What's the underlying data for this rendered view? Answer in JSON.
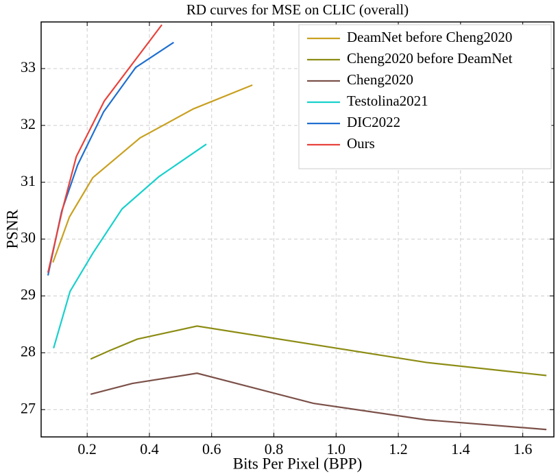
{
  "chart_data": {
    "type": "line",
    "title": "RD curves for MSE on CLIC (overall)",
    "x_label": "Bits Per Pixel (BPP)",
    "y_label": "PSNR",
    "xlim": [
      0.052,
      1.7
    ],
    "ylim": [
      26.52,
      33.82
    ],
    "xticks": [
      0.2,
      0.4,
      0.6,
      0.8,
      {
        "value": 1.0,
        "label": "1.0"
      },
      1.2,
      1.4,
      1.6
    ],
    "yticks": [
      27,
      28,
      29,
      30,
      31,
      32,
      33
    ],
    "grid": true,
    "legend": "upper right",
    "series": [
      {
        "name": "DeamNet before Cheng2020",
        "color": "#c9a020",
        "x": [
          0.09,
          0.143,
          0.218,
          0.37,
          0.541,
          0.731
        ],
        "values": [
          29.59,
          30.39,
          31.08,
          31.78,
          32.29,
          32.71
        ]
      },
      {
        "name": "Cheng2020 before DeamNet",
        "color": "#8c8c14",
        "x": [
          0.211,
          0.273,
          0.361,
          0.553,
          1.29,
          1.676
        ],
        "values": [
          27.89,
          28.04,
          28.24,
          28.47,
          27.83,
          27.6
        ]
      },
      {
        "name": "Cheng2020",
        "color": "#7b5048",
        "x": [
          0.211,
          0.345,
          0.553,
          0.927,
          1.29,
          1.676
        ],
        "values": [
          27.27,
          27.46,
          27.64,
          27.11,
          26.82,
          26.65
        ]
      },
      {
        "name": "Testolina2021",
        "color": "#17d0cc",
        "x": [
          0.092,
          0.145,
          0.218,
          0.312,
          0.431,
          0.583
        ],
        "values": [
          28.08,
          29.08,
          29.75,
          30.53,
          31.1,
          31.67
        ]
      },
      {
        "name": "DIC2022",
        "color": "#1f6fd0",
        "x": [
          0.074,
          0.118,
          0.169,
          0.253,
          0.356,
          0.478
        ],
        "values": [
          29.36,
          30.49,
          31.3,
          32.24,
          33.02,
          33.46
        ]
      },
      {
        "name": "Ours",
        "color": "#e8413a",
        "x": [
          0.074,
          0.121,
          0.165,
          0.255,
          0.44
        ],
        "values": [
          29.41,
          30.53,
          31.45,
          32.43,
          33.77
        ]
      }
    ]
  }
}
